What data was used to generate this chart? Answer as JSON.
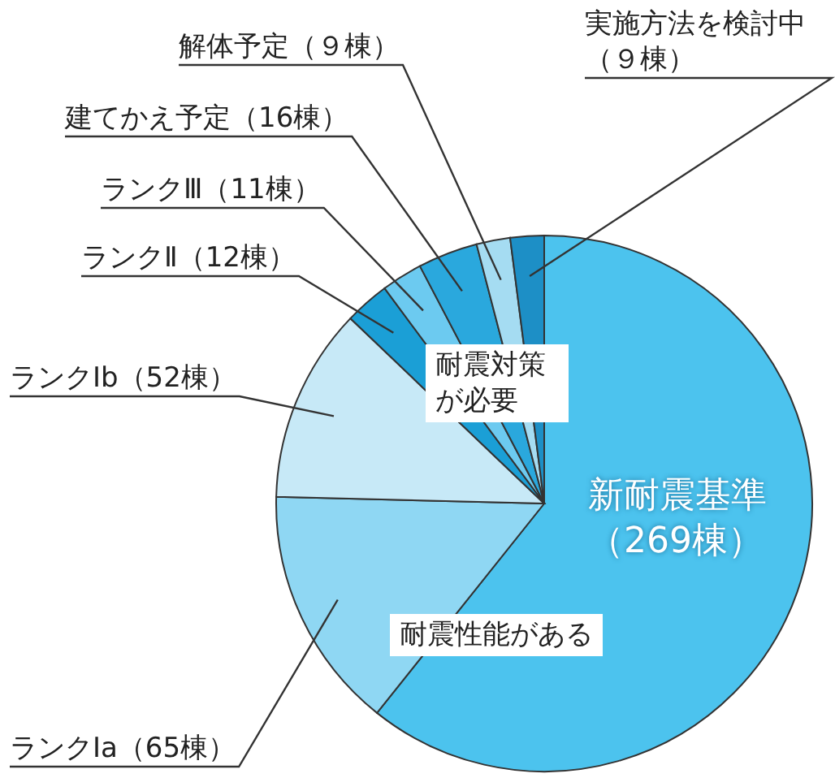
{
  "chart_data": {
    "type": "pie",
    "categories": [
      "新耐震基準（269棟）",
      "ランクⅠa（65棟）",
      "ランクⅠb（52棟）",
      "ランクⅡ（12棟）",
      "ランクⅢ（11棟）",
      "建てかえ予定（16棟）",
      "解体予定（９棟）",
      "実施方法を検討中（９棟）"
    ],
    "values": [
      269,
      65,
      52,
      12,
      11,
      16,
      9,
      9
    ],
    "colors": [
      "#4cc3ee",
      "#8fd7f3",
      "#c7e9f7",
      "#1b9fd6",
      "#6ccaf0",
      "#2aa8dd",
      "#a5dcf2",
      "#1d8fc6"
    ],
    "annotations": [
      "耐震対策が必要",
      "耐震性能がある"
    ]
  }
}
